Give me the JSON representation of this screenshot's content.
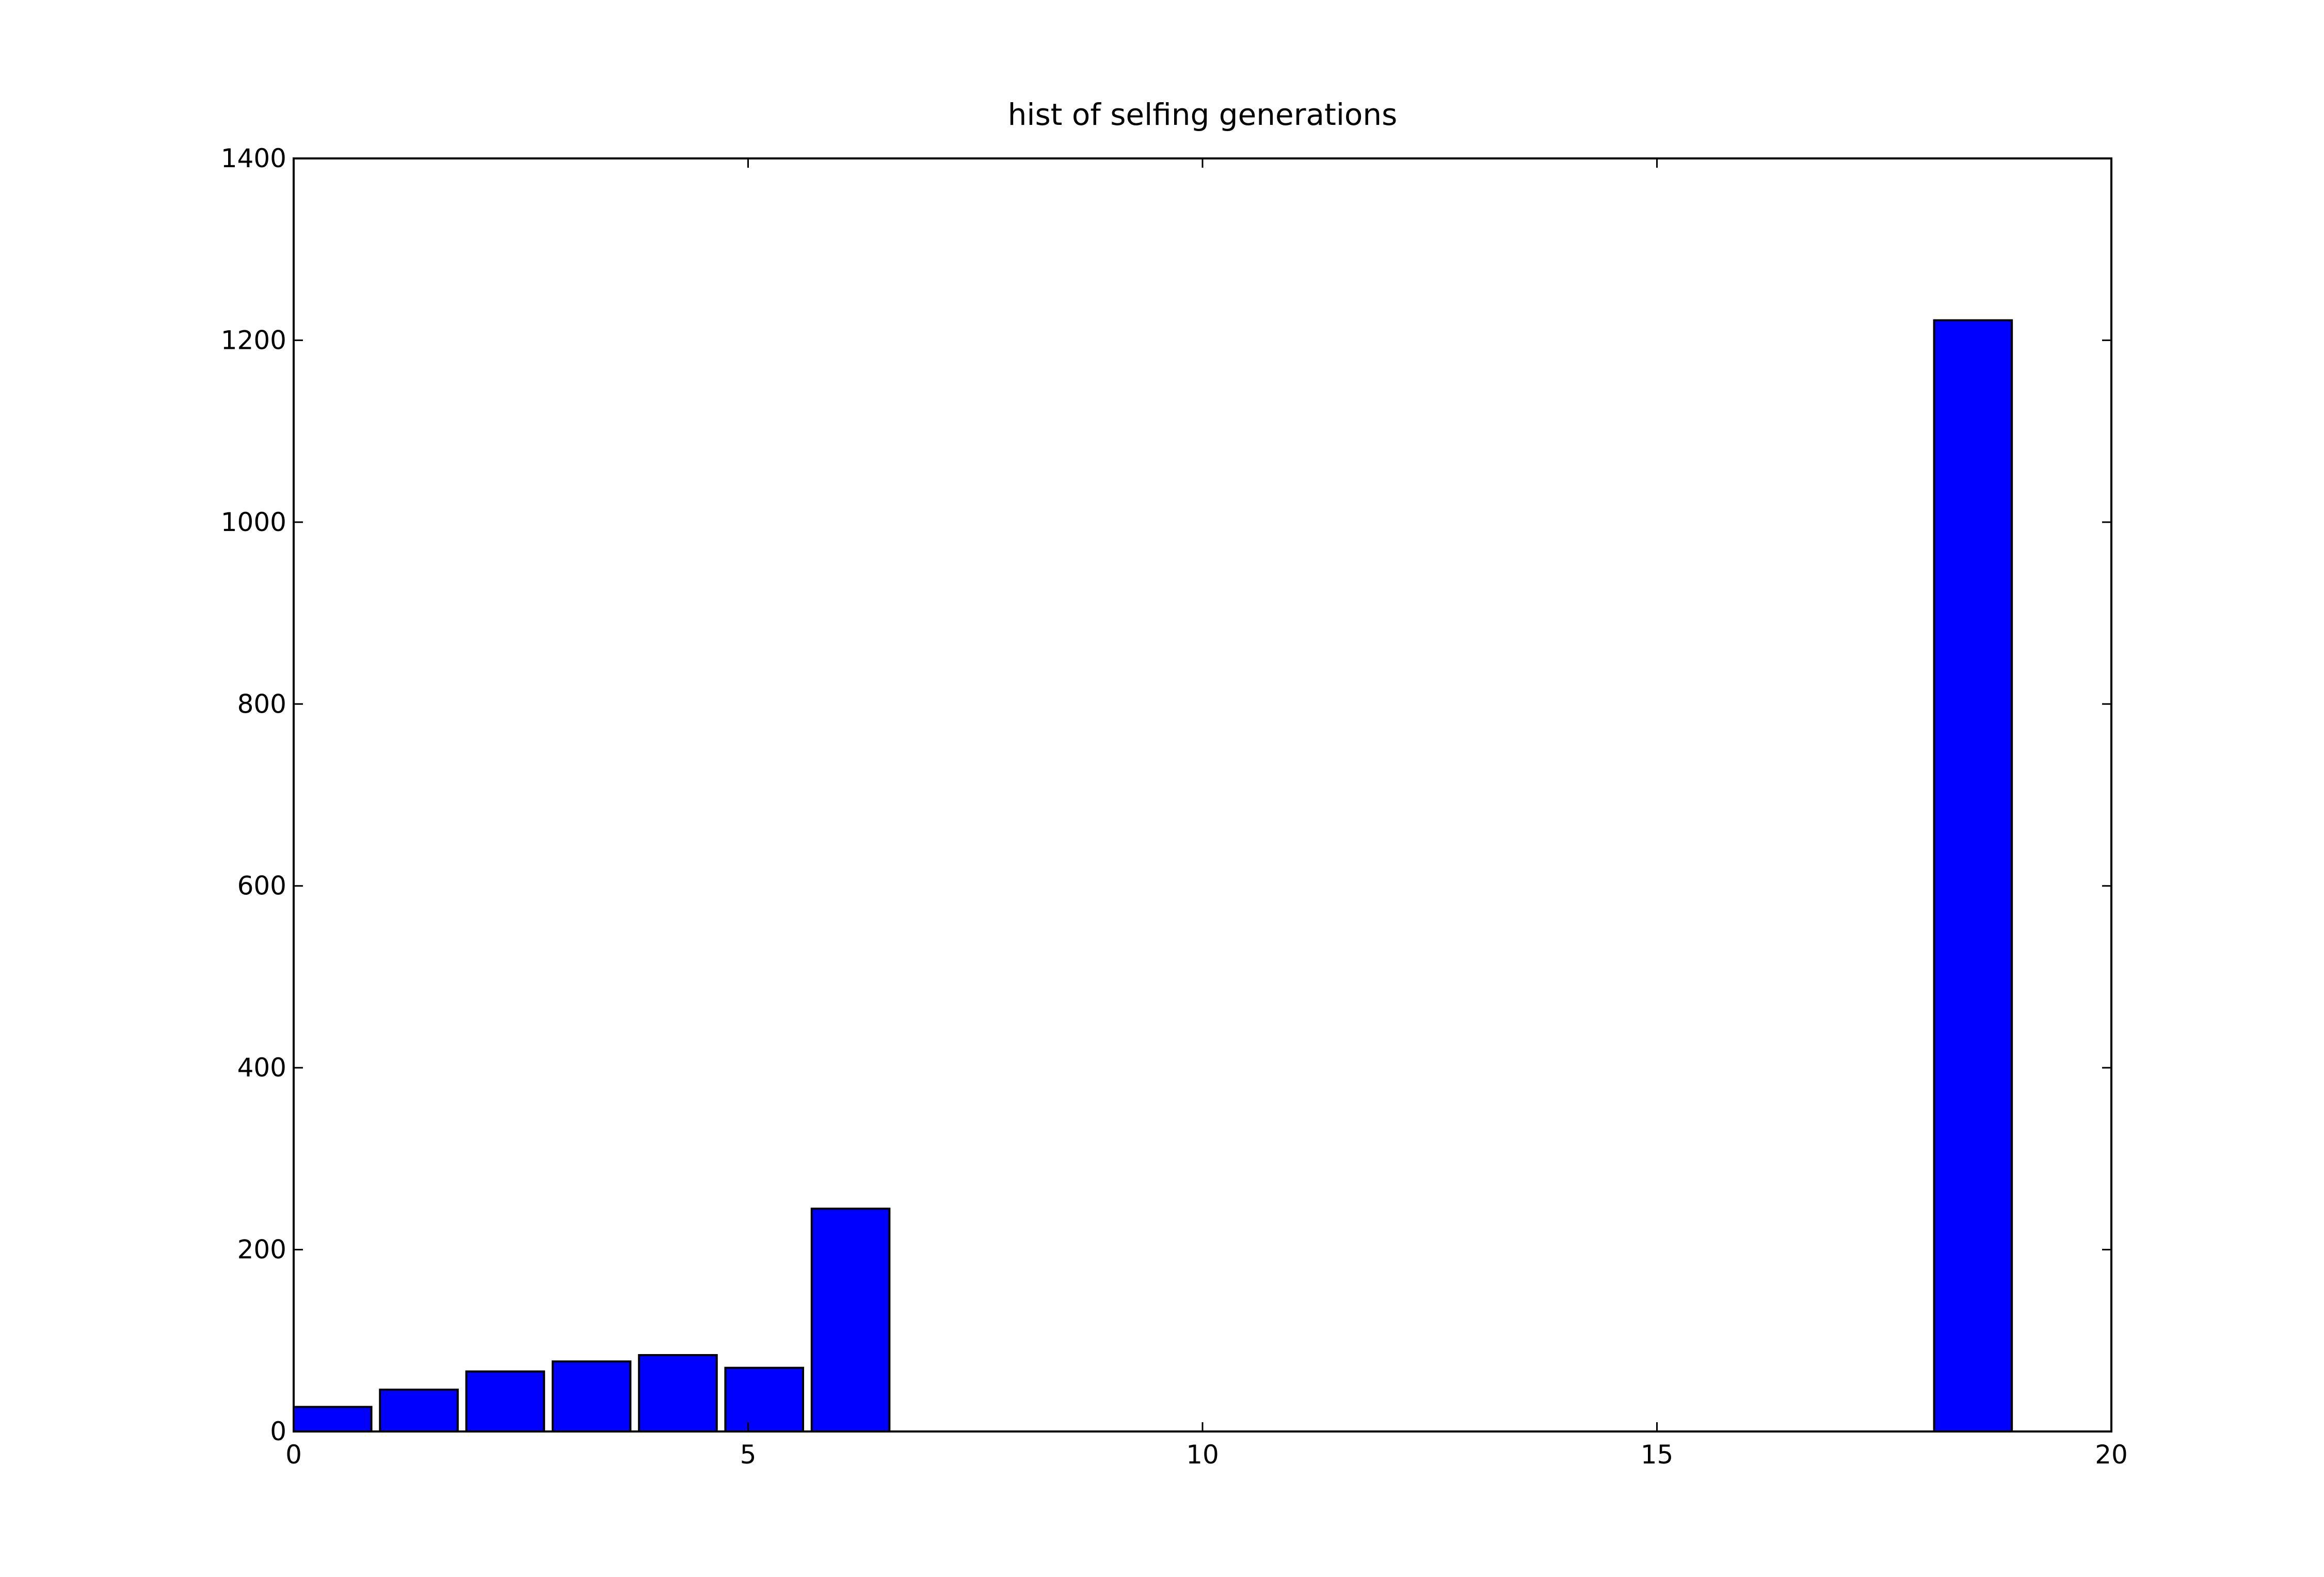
{
  "chart_data": {
    "type": "bar",
    "title": "hist of selfing generations",
    "xlabel": "",
    "ylabel": "",
    "xlim": [
      0,
      20
    ],
    "ylim": [
      0,
      1400
    ],
    "x_ticks": [
      0,
      5,
      10,
      15,
      20
    ],
    "y_ticks": [
      0,
      200,
      400,
      600,
      800,
      1000,
      1200,
      1400
    ],
    "grid": false,
    "legend": "none",
    "bar_color": "#0000ff",
    "edge_color": "#000000",
    "bins": [
      {
        "x_start": 0.0,
        "x_end": 0.855,
        "value": 27
      },
      {
        "x_start": 0.95,
        "x_end": 1.805,
        "value": 46
      },
      {
        "x_start": 1.9,
        "x_end": 2.755,
        "value": 66
      },
      {
        "x_start": 2.85,
        "x_end": 3.705,
        "value": 77
      },
      {
        "x_start": 3.8,
        "x_end": 4.655,
        "value": 84
      },
      {
        "x_start": 4.75,
        "x_end": 5.605,
        "value": 70
      },
      {
        "x_start": 5.7,
        "x_end": 6.555,
        "value": 245
      },
      {
        "x_start": 18.05,
        "x_end": 18.905,
        "value": 1222
      }
    ]
  }
}
